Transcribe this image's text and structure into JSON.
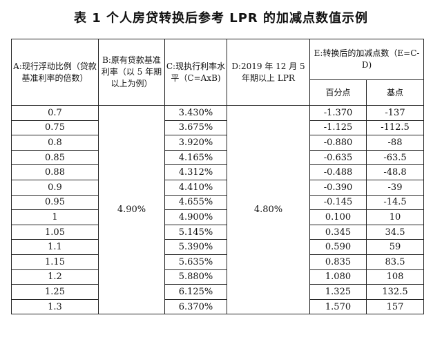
{
  "title": "表 1 个人房贷转换后参考 LPR 的加减点数值示例",
  "headers": {
    "a": "A:现行浮动比例（贷款基准利率的倍数）",
    "b": "B:原有贷款基准利率（以 5 年期以上为例）",
    "c": "C:现执行利率水平（C=AxB)",
    "d": "D:2019 年 12 月 5 年期以上 LPR",
    "e": "E:转换后的加减点数（E=C-D)",
    "e1": "百分点",
    "e2": "基点"
  },
  "shared": {
    "b": "4.90%",
    "d": "4.80%"
  },
  "rows": [
    {
      "a": "0.7",
      "c": "3.430%",
      "e1": "-1.370",
      "e2": "-137"
    },
    {
      "a": "0.75",
      "c": "3.675%",
      "e1": "-1.125",
      "e2": "-112.5"
    },
    {
      "a": "0.8",
      "c": "3.920%",
      "e1": "-0.880",
      "e2": "-88"
    },
    {
      "a": "0.85",
      "c": "4.165%",
      "e1": "-0.635",
      "e2": "-63.5"
    },
    {
      "a": "0.88",
      "c": "4.312%",
      "e1": "-0.488",
      "e2": "-48.8"
    },
    {
      "a": "0.9",
      "c": "4.410%",
      "e1": "-0.390",
      "e2": "-39"
    },
    {
      "a": "0.95",
      "c": "4.655%",
      "e1": "-0.145",
      "e2": "-14.5"
    },
    {
      "a": "1",
      "c": "4.900%",
      "e1": "0.100",
      "e2": "10"
    },
    {
      "a": "1.05",
      "c": "5.145%",
      "e1": "0.345",
      "e2": "34.5"
    },
    {
      "a": "1.1",
      "c": "5.390%",
      "e1": "0.590",
      "e2": "59"
    },
    {
      "a": "1.15",
      "c": "5.635%",
      "e1": "0.835",
      "e2": "83.5"
    },
    {
      "a": "1.2",
      "c": "5.880%",
      "e1": "1.080",
      "e2": "108"
    },
    {
      "a": "1.25",
      "c": "6.125%",
      "e1": "1.325",
      "e2": "132.5"
    },
    {
      "a": "1.3",
      "c": "6.370%",
      "e1": "1.570",
      "e2": "157"
    }
  ]
}
